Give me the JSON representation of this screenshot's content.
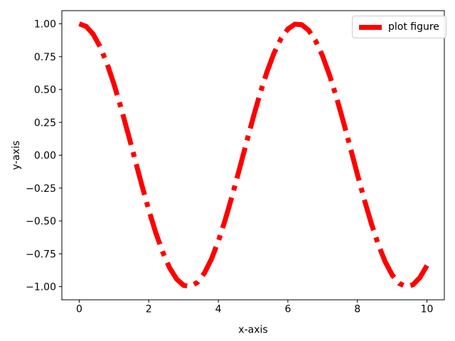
{
  "figure": {
    "background": "#ffffff",
    "frame_color": "#000000"
  },
  "chart_data": {
    "type": "line",
    "title": "",
    "xlabel": "x-axis",
    "ylabel": "y-axis",
    "xlim": [
      -0.5,
      10.5
    ],
    "ylim": [
      -1.1,
      1.1
    ],
    "grid": false,
    "xticks": [
      0,
      2,
      4,
      6,
      8,
      10
    ],
    "xtick_labels": [
      "0",
      "2",
      "4",
      "6",
      "8",
      "10"
    ],
    "yticks": [
      -1.0,
      -0.75,
      -0.5,
      -0.25,
      0.0,
      0.25,
      0.5,
      0.75,
      1.0
    ],
    "ytick_labels": [
      "−1.00",
      "−0.75",
      "−0.50",
      "−0.25",
      "0.00",
      "0.25",
      "0.50",
      "0.75",
      "1.00"
    ],
    "legend": {
      "position": "upper right",
      "labels": [
        "plot figure"
      ]
    },
    "series": [
      {
        "name": "plot figure",
        "color": "#ff0000",
        "linestyle": "dashdot",
        "linewidth": 7,
        "x": [
          0.0,
          0.2,
          0.4,
          0.6,
          0.8,
          1.0,
          1.2,
          1.4,
          1.6,
          1.8,
          2.0,
          2.2,
          2.4,
          2.6,
          2.8,
          3.0,
          3.2,
          3.4,
          3.6,
          3.8,
          4.0,
          4.2,
          4.4,
          4.6,
          4.8,
          5.0,
          5.2,
          5.4,
          5.6,
          5.8,
          6.0,
          6.2,
          6.4,
          6.6,
          6.8,
          7.0,
          7.2,
          7.4,
          7.6,
          7.8,
          8.0,
          8.2,
          8.4,
          8.6,
          8.8,
          9.0,
          9.2,
          9.4,
          9.6,
          9.8,
          10.0
        ],
        "y": [
          1.0,
          0.98,
          0.921,
          0.825,
          0.697,
          0.54,
          0.362,
          0.17,
          -0.029,
          -0.227,
          -0.416,
          -0.589,
          -0.737,
          -0.857,
          -0.942,
          -0.99,
          -0.998,
          -0.967,
          -0.897,
          -0.791,
          -0.654,
          -0.49,
          -0.307,
          -0.112,
          0.087,
          0.284,
          0.469,
          0.635,
          0.776,
          0.886,
          0.96,
          0.997,
          0.993,
          0.95,
          0.869,
          0.754,
          0.608,
          0.439,
          0.251,
          0.054,
          -0.146,
          -0.339,
          -0.519,
          -0.679,
          -0.811,
          -0.911,
          -0.975,
          -1.0,
          -0.985,
          -0.93,
          -0.839
        ]
      }
    ]
  }
}
